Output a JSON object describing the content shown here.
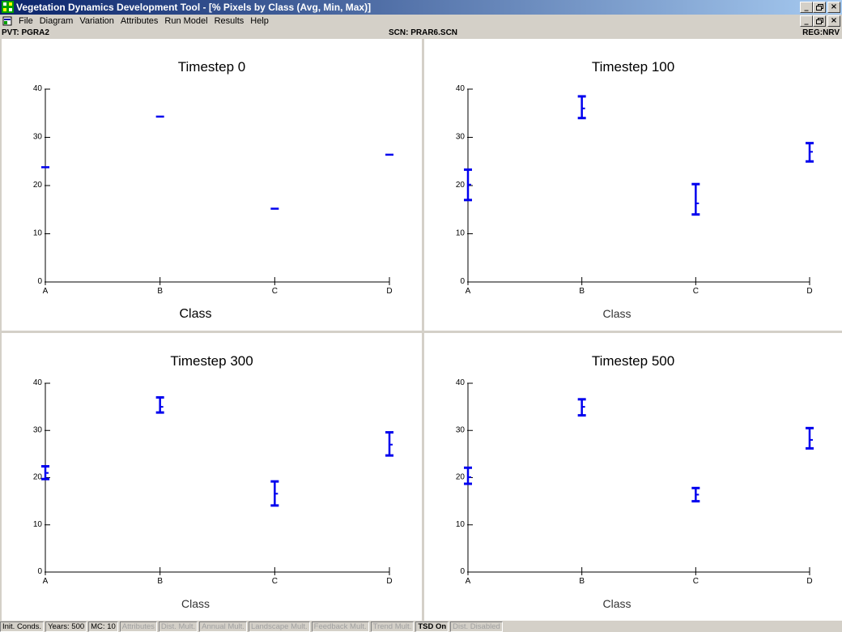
{
  "window": {
    "title": "Vegetation Dynamics Development Tool - [% Pixels by Class (Avg, Min, Max)]",
    "controls": {
      "minimize": "_",
      "restore": "̸",
      "close": "×"
    }
  },
  "menu": {
    "items": [
      "File",
      "Diagram",
      "Variation",
      "Attributes",
      "Run Model",
      "Results",
      "Help"
    ]
  },
  "info": {
    "pvt": "PVT: PGRA2",
    "scn": "SCN: PRAR6.SCN",
    "reg": "REG:NRV"
  },
  "chart_data": [
    {
      "type": "scatter",
      "title": "Timestep 0",
      "xlabel": "Class",
      "categories": [
        "A",
        "B",
        "C",
        "D"
      ],
      "ylim": [
        0,
        40
      ],
      "yticks": [
        0,
        10,
        20,
        30,
        40
      ],
      "avg": [
        23.8,
        34.3,
        15.2,
        26.4
      ],
      "min": [
        23.8,
        34.3,
        15.2,
        26.4
      ],
      "max": [
        23.8,
        34.3,
        15.2,
        26.4
      ]
    },
    {
      "type": "scatter",
      "title": "Timestep 100",
      "xlabel": "Class",
      "categories": [
        "A",
        "B",
        "C",
        "D"
      ],
      "ylim": [
        0,
        40
      ],
      "yticks": [
        0,
        10,
        20,
        30,
        40
      ],
      "avg": [
        20.2,
        36.0,
        16.3,
        27.0
      ],
      "min": [
        17.0,
        34.0,
        14.0,
        25.0
      ],
      "max": [
        23.3,
        38.5,
        20.3,
        28.8
      ]
    },
    {
      "type": "scatter",
      "title": "Timestep 300",
      "xlabel": "Class",
      "categories": [
        "A",
        "B",
        "C",
        "D"
      ],
      "ylim": [
        0,
        40
      ],
      "yticks": [
        0,
        10,
        20,
        30,
        40
      ],
      "avg": [
        21.0,
        35.0,
        16.6,
        27.0
      ],
      "min": [
        19.7,
        33.8,
        14.1,
        24.7
      ],
      "max": [
        22.4,
        37.0,
        19.2,
        29.6
      ]
    },
    {
      "type": "scatter",
      "title": "Timestep 500",
      "xlabel": "Class",
      "categories": [
        "A",
        "B",
        "C",
        "D"
      ],
      "ylim": [
        0,
        40
      ],
      "yticks": [
        0,
        10,
        20,
        30,
        40
      ],
      "avg": [
        20.1,
        35.0,
        16.4,
        28.0
      ],
      "min": [
        18.7,
        33.2,
        15.0,
        26.2
      ],
      "max": [
        22.1,
        36.6,
        17.8,
        30.5
      ]
    }
  ],
  "status": [
    {
      "label": "Init. Conds.",
      "enabled": true,
      "bold": false
    },
    {
      "label": "Years: 500",
      "enabled": true,
      "bold": false
    },
    {
      "label": "MC: 10",
      "enabled": true,
      "bold": false
    },
    {
      "label": "Attributes",
      "enabled": false,
      "bold": false
    },
    {
      "label": "Dist. Mult.",
      "enabled": false,
      "bold": false
    },
    {
      "label": "Annual Mult.",
      "enabled": false,
      "bold": false
    },
    {
      "label": "Landscape Mult.",
      "enabled": false,
      "bold": false
    },
    {
      "label": "Feedback Mult.",
      "enabled": false,
      "bold": false
    },
    {
      "label": "Trend Mult.",
      "enabled": false,
      "bold": false
    },
    {
      "label": "TSD On",
      "enabled": true,
      "bold": true
    },
    {
      "label": "Dist. Disabled",
      "enabled": false,
      "bold": false
    }
  ],
  "colors": {
    "series": "#0000ee",
    "axis": "#000000",
    "title_bar_start": "#0a246a",
    "title_bar_end": "#a6caf0"
  }
}
